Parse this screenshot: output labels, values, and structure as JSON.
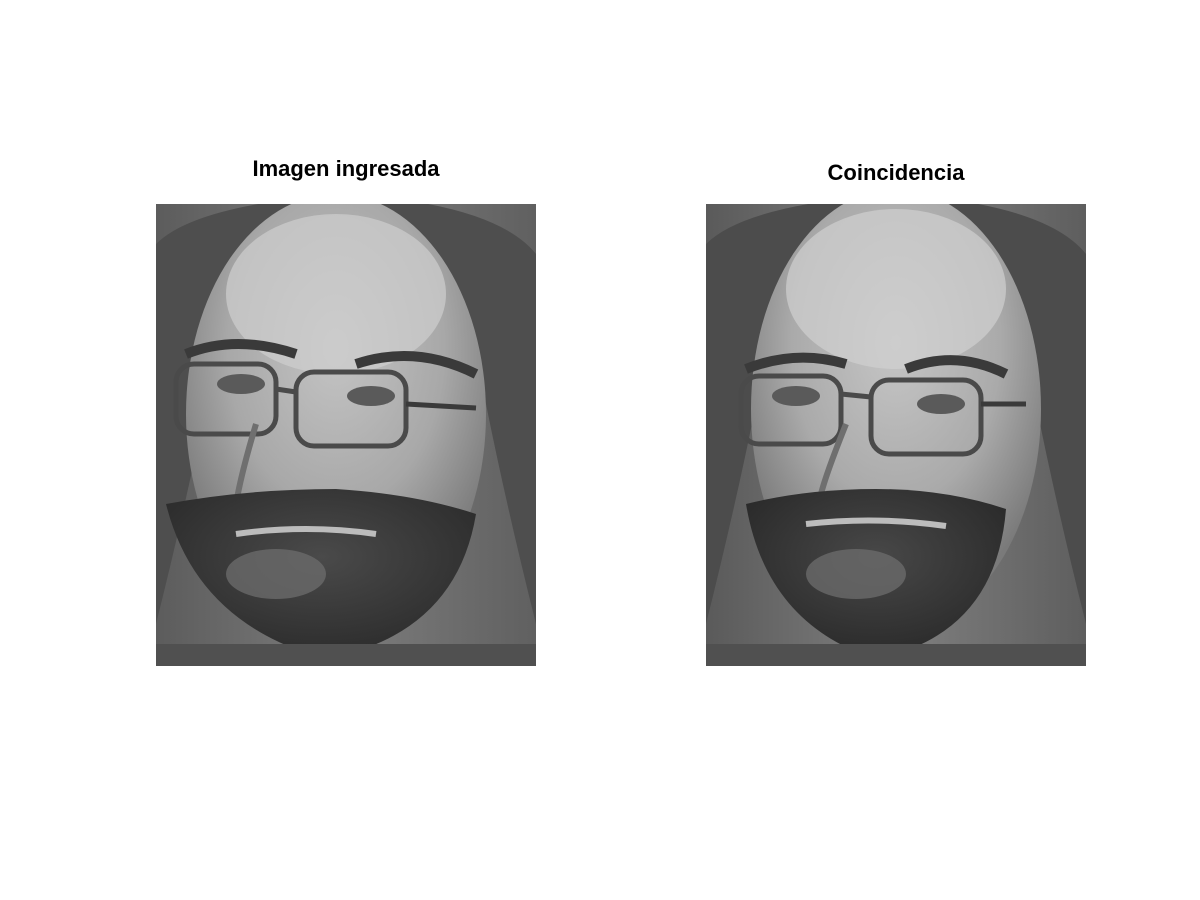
{
  "figure": {
    "panels": [
      {
        "title": "Imagen ingresada",
        "image": "grayscale-face-photo-input"
      },
      {
        "title": "Coincidencia",
        "image": "grayscale-face-photo-match"
      }
    ]
  }
}
